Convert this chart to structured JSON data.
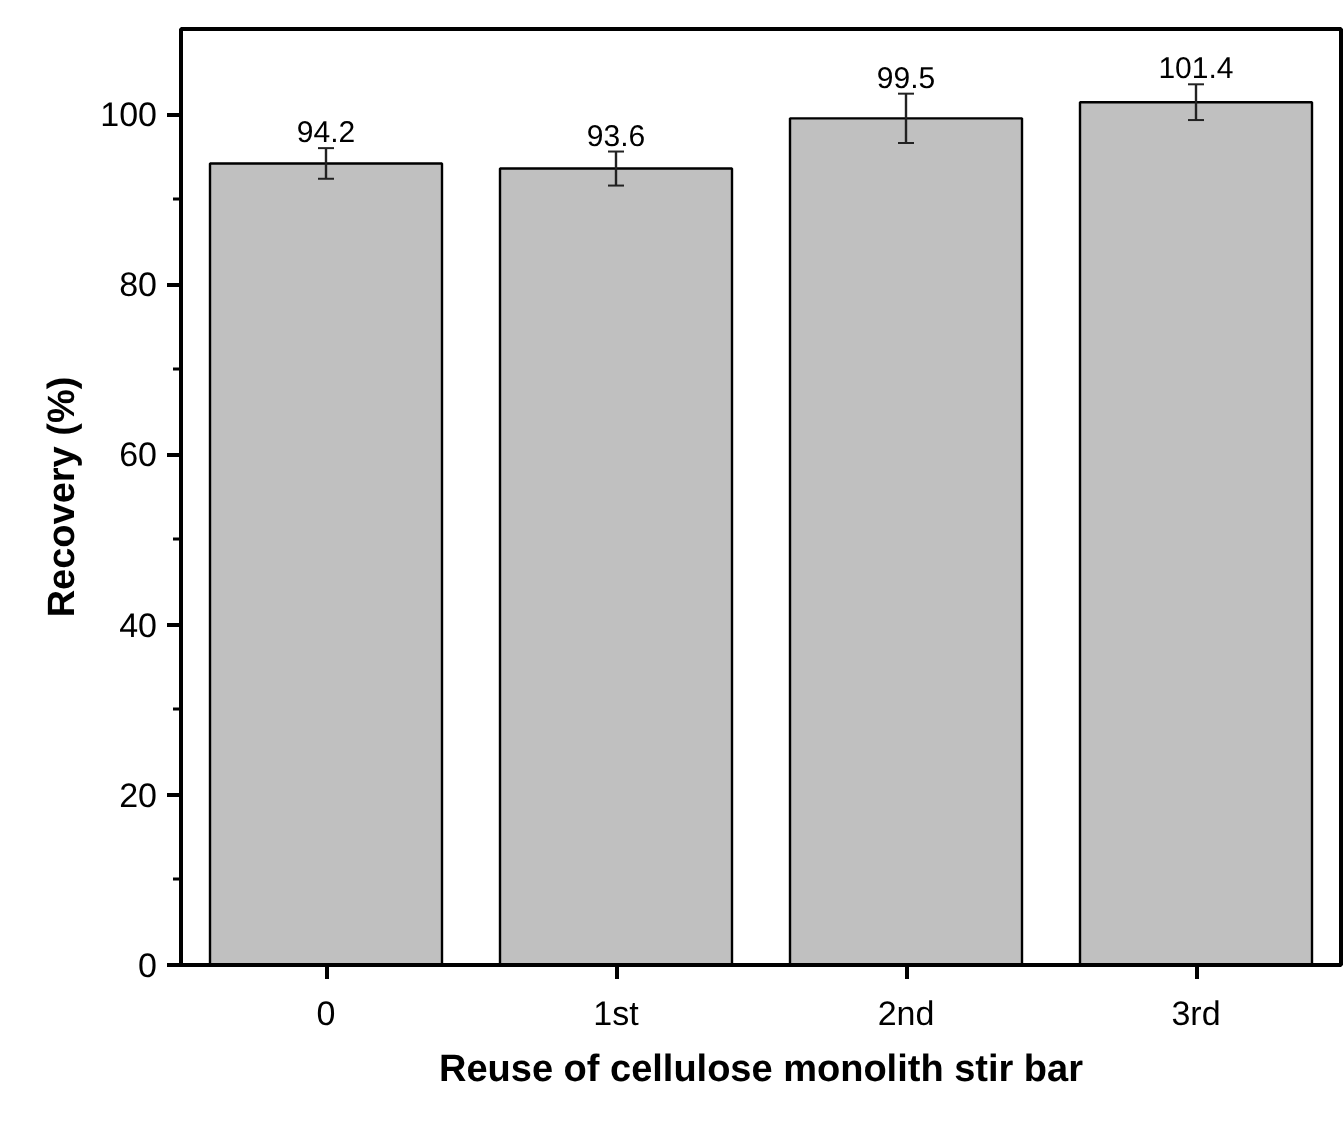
{
  "chart_data": {
    "type": "bar",
    "xlabel": "Reuse of cellulose monolith stir bar",
    "ylabel": "Recovery (%)",
    "categories": [
      "0",
      "1st",
      "2nd",
      "3rd"
    ],
    "values": [
      94.2,
      93.6,
      99.5,
      101.4
    ],
    "errors": [
      1.8,
      2.0,
      2.9,
      2.1
    ],
    "color": "#c0c0c0",
    "data_labels": true,
    "grid": false,
    "ylim": [
      0,
      110
    ],
    "yticks": [
      0,
      {
        "value": 10,
        "label": null
      },
      20,
      {
        "value": 30,
        "label": null
      },
      40,
      {
        "value": 50,
        "label": null
      },
      60,
      {
        "value": 70,
        "label": null
      },
      80,
      {
        "value": 90,
        "label": null
      },
      100
    ]
  }
}
